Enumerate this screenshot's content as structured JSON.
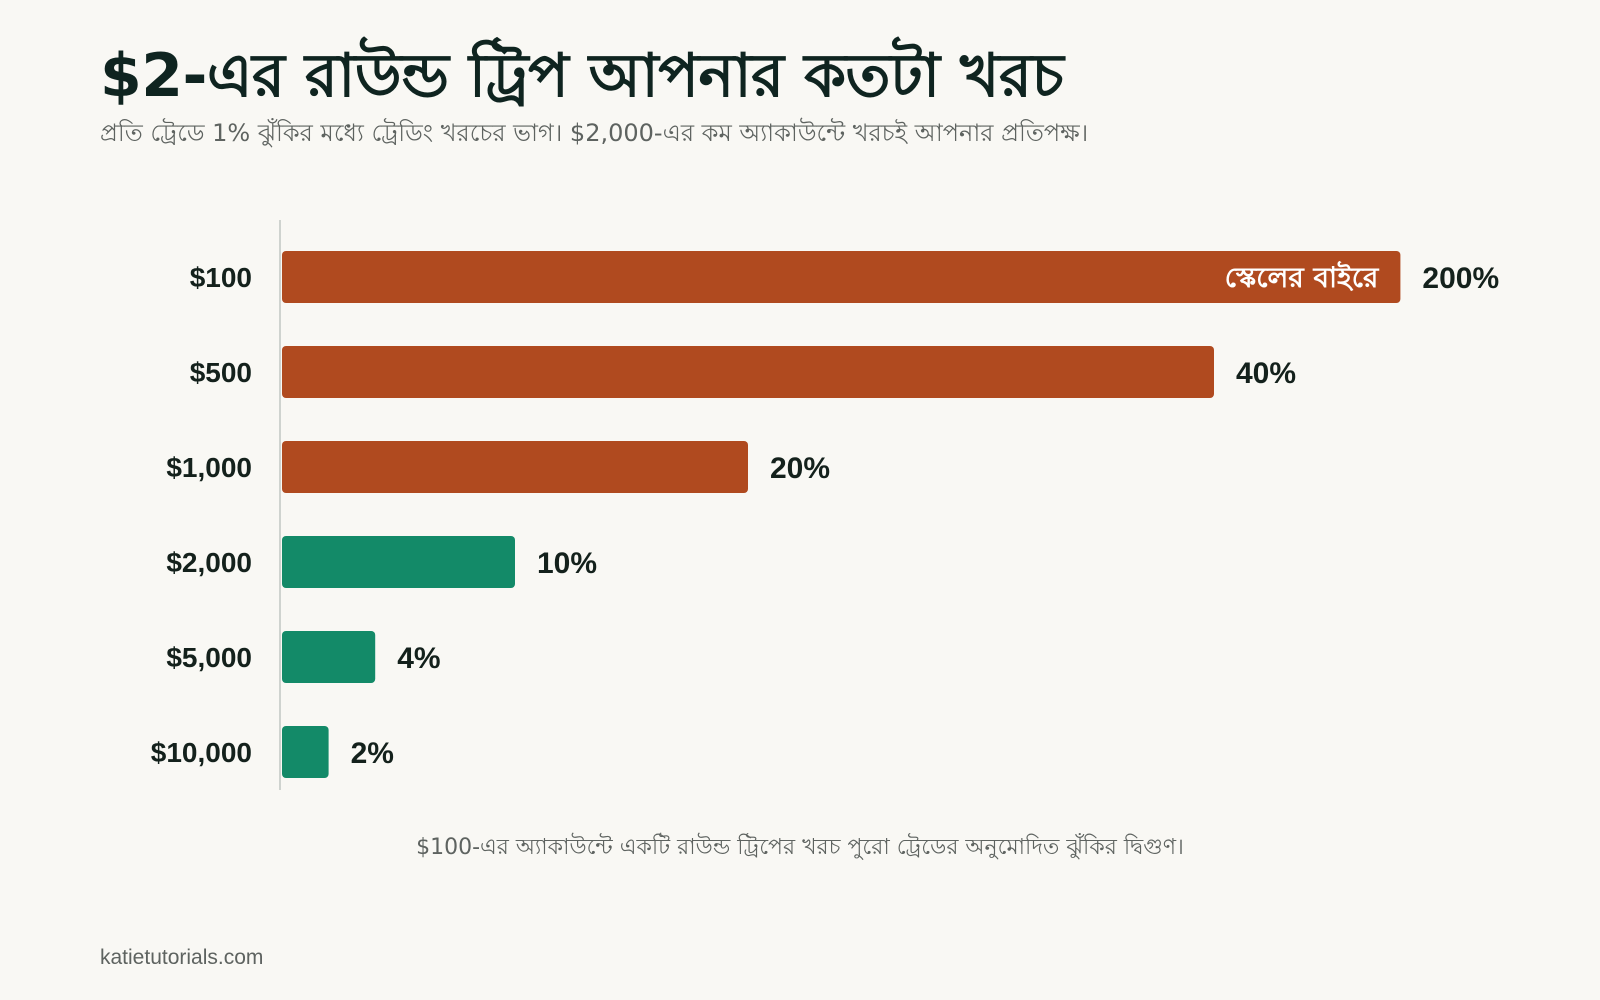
{
  "title": "$2-এর রাউন্ড ট্রিপ আপনার কতটা খরচ",
  "subtitle": "প্রতি ট্রেডে 1% ঝুঁকির মধ্যে ট্রেডিং খরচের ভাগ। $2,000-এর কম অ্যাকাউন্টে খরচই আপনার প্রতিপক্ষ।",
  "footnote": "$100-এর অ্যাকাউন্টে একটি রাউন্ড ট্রিপের খরচ পুরো ট্রেডের অনুমোদিত ঝুঁকির দ্বিগুণ।",
  "source": "katietutorials.com",
  "colors": {
    "high": "#b04a1f",
    "low": "#138a68",
    "axis": "#cfd3cf",
    "label": "#14211c",
    "background": "#f9f8f4"
  },
  "chart_data": {
    "type": "bar",
    "orientation": "horizontal",
    "categories": [
      "$100",
      "$500",
      "$1,000",
      "$2,000",
      "$5,000",
      "$10,000"
    ],
    "values": [
      200,
      40,
      20,
      10,
      4,
      2
    ],
    "value_labels": [
      "200%",
      "40%",
      "20%",
      "10%",
      "4%",
      "2%"
    ],
    "bar_colors": [
      "#b04a1f",
      "#b04a1f",
      "#b04a1f",
      "#138a68",
      "#138a68",
      "#138a68"
    ],
    "xlim": [
      0,
      48
    ],
    "clipped": [
      true,
      false,
      false,
      false,
      false,
      false
    ],
    "clipped_label": "স্কেলের বাইরে",
    "title": "",
    "xlabel": "",
    "ylabel": "",
    "grid": false,
    "legend": "none"
  }
}
